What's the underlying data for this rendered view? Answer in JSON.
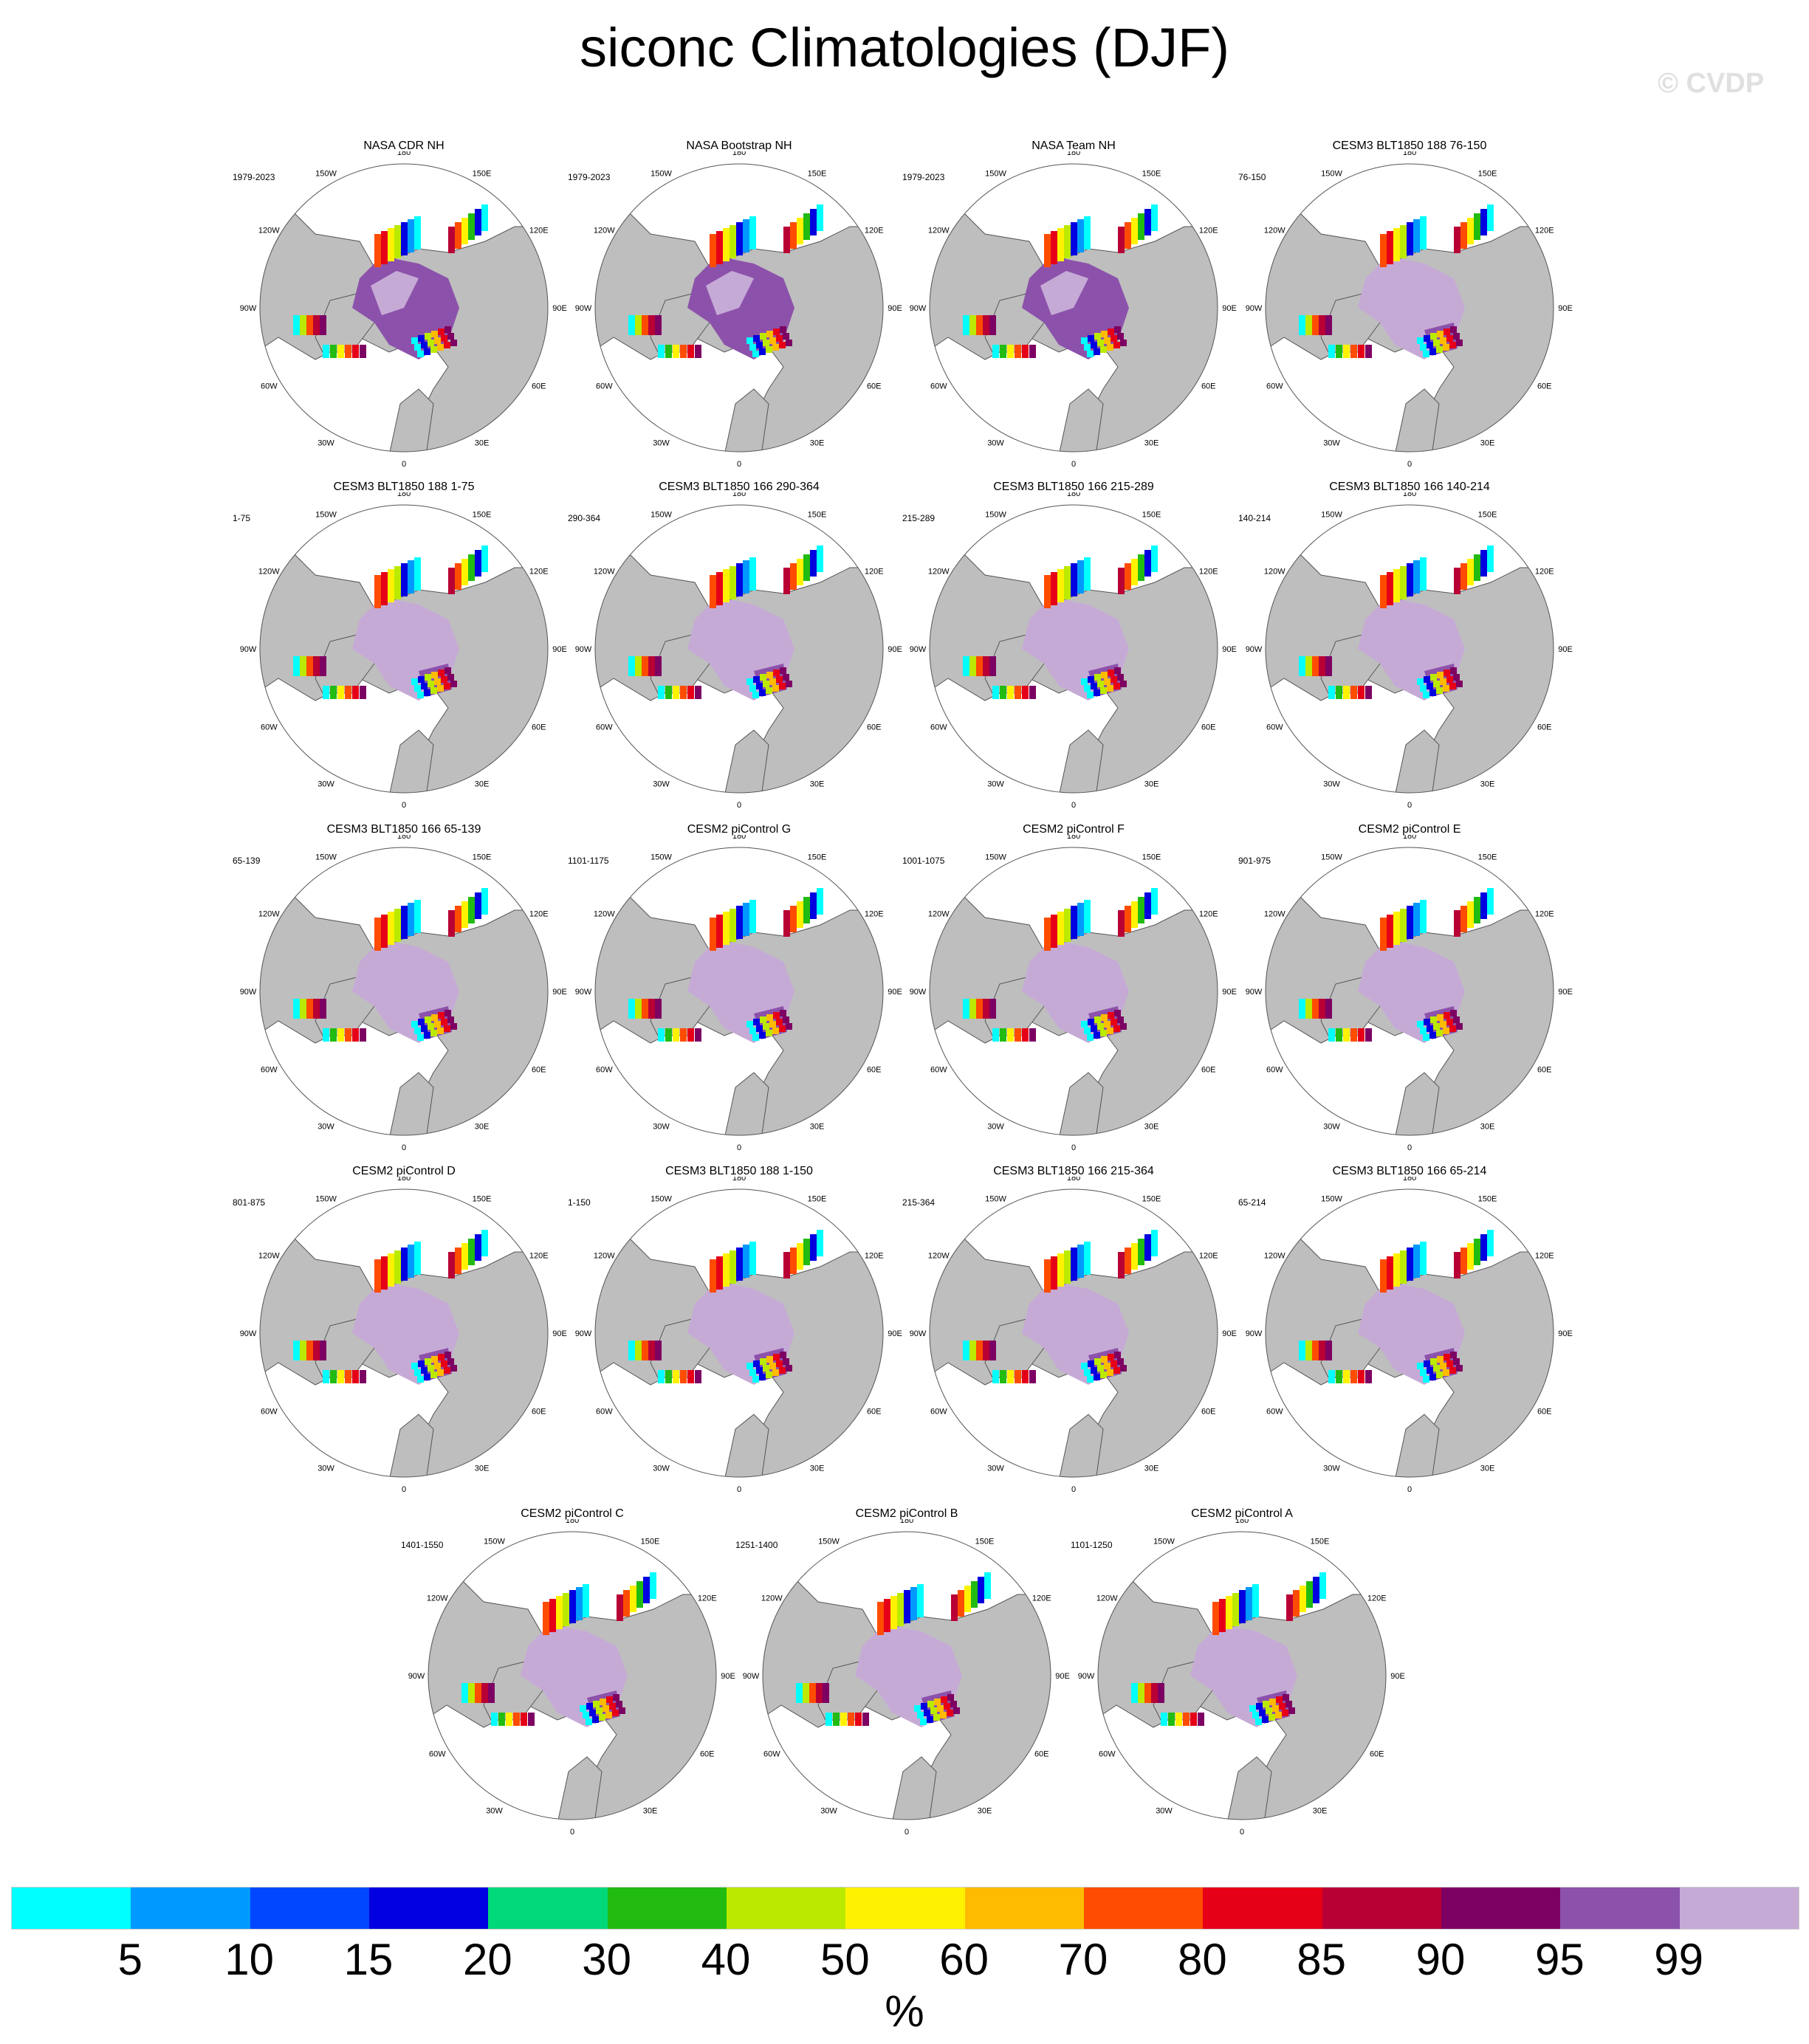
{
  "title": "siconc Climatologies (DJF)",
  "watermark": "© CVDP",
  "longitude_labels": [
    "180",
    "150E",
    "120E",
    "90E",
    "60E",
    "30E",
    "0",
    "30W",
    "60W",
    "90W",
    "120W",
    "150W"
  ],
  "panels": [
    {
      "title": "NASA CDR NH",
      "period": "1979-2023",
      "ice": "obs"
    },
    {
      "title": "NASA Bootstrap NH",
      "period": "1979-2023",
      "ice": "obs"
    },
    {
      "title": "NASA Team NH",
      "period": "1979-2023",
      "ice": "obs"
    },
    {
      "title": "CESM3 BLT1850 188 76-150",
      "period": "76-150",
      "ice": "model"
    },
    {
      "title": "CESM3 BLT1850 188 1-75",
      "period": "1-75",
      "ice": "model"
    },
    {
      "title": "CESM3 BLT1850 166 290-364",
      "period": "290-364",
      "ice": "model"
    },
    {
      "title": "CESM3 BLT1850 166 215-289",
      "period": "215-289",
      "ice": "model"
    },
    {
      "title": "CESM3 BLT1850 166 140-214",
      "period": "140-214",
      "ice": "model"
    },
    {
      "title": "CESM3 BLT1850 166 65-139",
      "period": "65-139",
      "ice": "model"
    },
    {
      "title": "CESM2 piControl G",
      "period": "1101-1175",
      "ice": "model"
    },
    {
      "title": "CESM2 piControl F",
      "period": "1001-1075",
      "ice": "model"
    },
    {
      "title": "CESM2 piControl E",
      "period": "901-975",
      "ice": "model"
    },
    {
      "title": "CESM2 piControl D",
      "period": "801-875",
      "ice": "model"
    },
    {
      "title": "CESM3 BLT1850 188 1-150",
      "period": "1-150",
      "ice": "model"
    },
    {
      "title": "CESM3 BLT1850 166 215-364",
      "period": "215-364",
      "ice": "model"
    },
    {
      "title": "CESM3 BLT1850 166 65-214",
      "period": "65-214",
      "ice": "model"
    },
    {
      "title": "CESM2 piControl C",
      "period": "1401-1550",
      "ice": "model"
    },
    {
      "title": "CESM2 piControl B",
      "period": "1251-1400",
      "ice": "model"
    },
    {
      "title": "CESM2 piControl A",
      "period": "1101-1250",
      "ice": "model"
    }
  ],
  "colorbar": {
    "units": "%",
    "labels": [
      "5",
      "10",
      "15",
      "20",
      "30",
      "40",
      "50",
      "60",
      "70",
      "80",
      "85",
      "90",
      "95",
      "99"
    ],
    "colors": [
      "#00ffff",
      "#0099ff",
      "#0047ff",
      "#0000e0",
      "#00d87a",
      "#22bb11",
      "#bbea00",
      "#fff200",
      "#ffbb00",
      "#ff4c00",
      "#e60017",
      "#b80035",
      "#7d0063",
      "#8c52ab",
      "#c6aad6"
    ]
  },
  "map_colors": {
    "land": "#bebebe",
    "ocean": "#ffffff",
    "coast": "#555555"
  }
}
